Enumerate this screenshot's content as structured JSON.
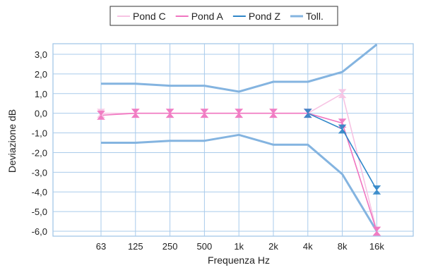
{
  "chart_data": {
    "type": "line",
    "xlabel": "Frequenza Hz",
    "ylabel": "Deviazione dB",
    "categories": [
      "63",
      "125",
      "250",
      "500",
      "1k",
      "2k",
      "4k",
      "8k",
      "16k"
    ],
    "ylim": [
      -6.0,
      3.0
    ],
    "y_ticks": [
      "3,0",
      "2,0",
      "1,0",
      "0,0",
      "-1,0",
      "-2,0",
      "-3,0",
      "-4,0",
      "-5,0",
      "-6,0"
    ],
    "grid": true,
    "legend_position": "top",
    "series": [
      {
        "name": "Pond C",
        "color": "#f7c3e3",
        "values": [
          0.0,
          0.0,
          0.0,
          0.0,
          0.0,
          0.0,
          0.0,
          1.0,
          -6.0
        ]
      },
      {
        "name": "Pond A",
        "color": "#f075c0",
        "values": [
          -0.1,
          0.0,
          0.0,
          0.0,
          0.0,
          0.0,
          0.0,
          -0.5,
          -6.0
        ]
      },
      {
        "name": "Pond Z",
        "color": "#2f86c8",
        "values": [
          null,
          null,
          null,
          null,
          null,
          null,
          0.0,
          -0.8,
          -3.9
        ]
      },
      {
        "name": "Toll.",
        "color": "#84b4e0",
        "upper": [
          1.5,
          1.5,
          1.4,
          1.4,
          1.1,
          1.6,
          1.6,
          2.1,
          3.5
        ],
        "lower": [
          -1.5,
          -1.5,
          -1.4,
          -1.4,
          -1.1,
          -1.6,
          -1.6,
          -3.1,
          -6.0
        ]
      }
    ]
  }
}
